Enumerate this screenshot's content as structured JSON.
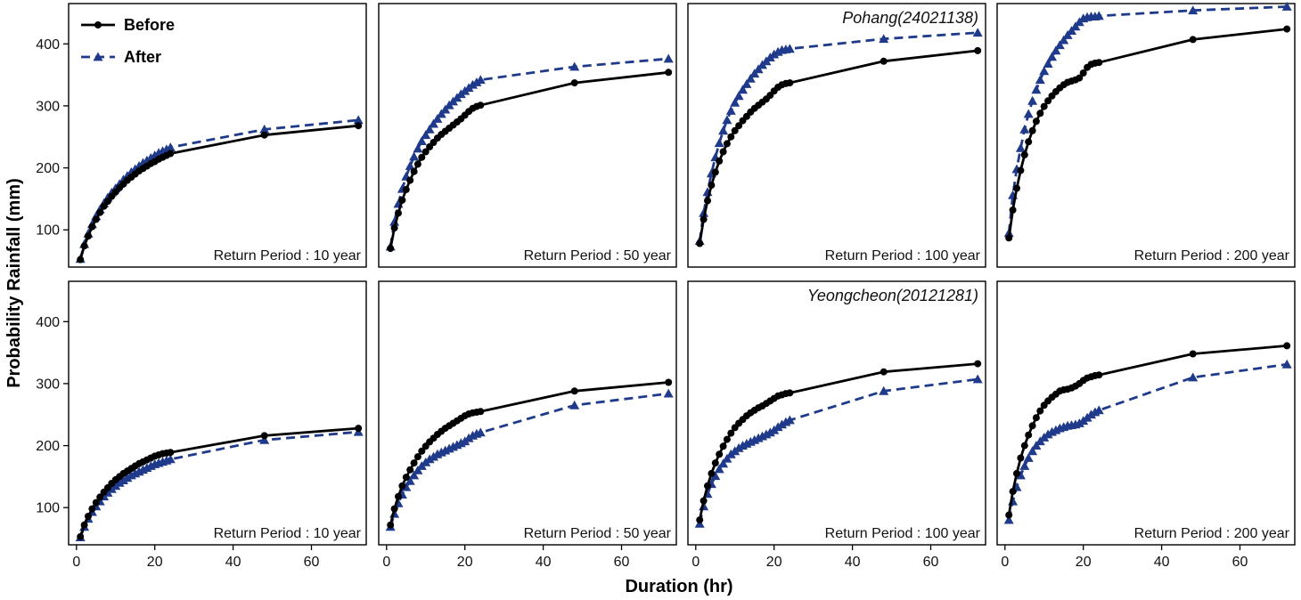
{
  "figure": {
    "ylabel": "Probability Rainfall (mm)",
    "xlabel": "Duration (hr)",
    "x_ticks": [
      0,
      20,
      40,
      60
    ],
    "y_ticks": [
      100,
      200,
      300,
      400
    ],
    "xlim": [
      -2,
      74
    ],
    "ylim": [
      40,
      465
    ],
    "legend": {
      "placement": "top-left",
      "entries": [
        {
          "name": "Before",
          "color": "#000000",
          "marker": "circle",
          "dash": "solid"
        },
        {
          "name": "After",
          "color": "#1f3a8a",
          "marker": "triangle",
          "dash": "dashed"
        }
      ]
    }
  },
  "chart_data": [
    {
      "type": "line",
      "row": 0,
      "col": 0,
      "label": "Return Period : 10 year",
      "station": "",
      "x": [
        1,
        2,
        3,
        4,
        5,
        6,
        7,
        8,
        9,
        10,
        11,
        12,
        13,
        14,
        15,
        16,
        17,
        18,
        19,
        20,
        21,
        22,
        23,
        24,
        48,
        72
      ],
      "series": [
        {
          "name": "Before",
          "values": [
            52,
            74,
            90,
            105,
            117,
            128,
            138,
            146,
            154,
            161,
            168,
            174,
            180,
            185,
            190,
            195,
            199,
            203,
            207,
            210,
            214,
            217,
            220,
            223,
            253,
            268
          ]
        },
        {
          "name": "After",
          "values": [
            53,
            77,
            94,
            109,
            122,
            133,
            143,
            152,
            160,
            167,
            174,
            181,
            187,
            193,
            198,
            203,
            208,
            212,
            216,
            220,
            224,
            227,
            230,
            233,
            262,
            277
          ]
        }
      ]
    },
    {
      "type": "line",
      "row": 0,
      "col": 1,
      "label": "Return Period : 50 year",
      "station": "",
      "x": [
        1,
        2,
        3,
        4,
        5,
        6,
        7,
        8,
        9,
        10,
        11,
        12,
        13,
        14,
        15,
        16,
        17,
        18,
        19,
        20,
        21,
        22,
        23,
        24,
        48,
        72
      ],
      "series": [
        {
          "name": "Before",
          "values": [
            70,
            103,
            127,
            148,
            165,
            180,
            194,
            206,
            217,
            226,
            234,
            241,
            248,
            254,
            259,
            264,
            269,
            274,
            279,
            285,
            291,
            296,
            299,
            301,
            337,
            354
          ]
        },
        {
          "name": "After",
          "values": [
            73,
            113,
            142,
            166,
            186,
            203,
            218,
            231,
            243,
            253,
            262,
            271,
            279,
            287,
            294,
            301,
            307,
            313,
            319,
            324,
            329,
            334,
            338,
            342,
            363,
            376
          ]
        }
      ]
    },
    {
      "type": "line",
      "row": 0,
      "col": 2,
      "label": "Return Period : 100 year",
      "station": "Pohang(24021138)",
      "x": [
        1,
        2,
        3,
        4,
        5,
        6,
        7,
        8,
        9,
        10,
        11,
        12,
        13,
        14,
        15,
        16,
        17,
        18,
        19,
        20,
        21,
        22,
        23,
        24,
        48,
        72
      ],
      "series": [
        {
          "name": "Before",
          "values": [
            78,
            117,
            147,
            172,
            193,
            211,
            226,
            239,
            250,
            260,
            268,
            276,
            283,
            290,
            296,
            301,
            306,
            311,
            317,
            324,
            330,
            334,
            336,
            337,
            372,
            389
          ]
        },
        {
          "name": "After",
          "values": [
            82,
            127,
            161,
            191,
            217,
            240,
            260,
            277,
            292,
            305,
            316,
            326,
            335,
            344,
            352,
            359,
            366,
            372,
            378,
            383,
            387,
            390,
            391,
            392,
            408,
            418
          ]
        }
      ]
    },
    {
      "type": "line",
      "row": 0,
      "col": 3,
      "label": "Return Period : 200 year",
      "station": "",
      "x": [
        1,
        2,
        3,
        4,
        5,
        6,
        7,
        8,
        9,
        10,
        11,
        12,
        13,
        14,
        15,
        16,
        17,
        18,
        19,
        20,
        21,
        22,
        23,
        24,
        48,
        72
      ],
      "series": [
        {
          "name": "Before",
          "values": [
            87,
            132,
            167,
            196,
            221,
            242,
            260,
            275,
            288,
            299,
            308,
            316,
            323,
            329,
            334,
            338,
            340,
            342,
            345,
            353,
            362,
            367,
            369,
            370,
            407,
            424
          ]
        },
        {
          "name": "After",
          "values": [
            95,
            156,
            198,
            232,
            262,
            287,
            308,
            326,
            342,
            356,
            368,
            379,
            389,
            398,
            406,
            414,
            421,
            428,
            435,
            441,
            443,
            444,
            444,
            445,
            454,
            460
          ]
        }
      ]
    },
    {
      "type": "line",
      "row": 1,
      "col": 0,
      "label": "Return Period : 10 year",
      "station": "",
      "x": [
        1,
        2,
        3,
        4,
        5,
        6,
        7,
        8,
        9,
        10,
        11,
        12,
        13,
        14,
        15,
        16,
        17,
        18,
        19,
        20,
        21,
        22,
        23,
        24,
        48,
        72
      ],
      "series": [
        {
          "name": "Before",
          "values": [
            53,
            72,
            86,
            98,
            108,
            117,
            125,
            132,
            139,
            145,
            150,
            155,
            159,
            163,
            167,
            171,
            174,
            177,
            180,
            183,
            185,
            187,
            188,
            189,
            216,
            228
          ]
        },
        {
          "name": "After",
          "values": [
            52,
            69,
            82,
            93,
            102,
            110,
            118,
            124,
            130,
            135,
            140,
            144,
            148,
            152,
            155,
            158,
            161,
            164,
            167,
            170,
            172,
            174,
            176,
            178,
            209,
            222
          ]
        }
      ]
    },
    {
      "type": "line",
      "row": 1,
      "col": 1,
      "label": "Return Period : 50 year",
      "station": "",
      "x": [
        1,
        2,
        3,
        4,
        5,
        6,
        7,
        8,
        9,
        10,
        11,
        12,
        13,
        14,
        15,
        16,
        17,
        18,
        19,
        20,
        21,
        22,
        23,
        24,
        48,
        72
      ],
      "series": [
        {
          "name": "Before",
          "values": [
            72,
            98,
            118,
            135,
            149,
            161,
            172,
            182,
            191,
            199,
            206,
            212,
            218,
            223,
            228,
            232,
            236,
            240,
            244,
            248,
            251,
            253,
            254,
            255,
            288,
            302
          ]
        },
        {
          "name": "After",
          "values": [
            69,
            90,
            107,
            121,
            133,
            143,
            152,
            160,
            167,
            173,
            178,
            182,
            186,
            189,
            192,
            195,
            198,
            201,
            204,
            207,
            212,
            216,
            219,
            221,
            265,
            284
          ]
        }
      ]
    },
    {
      "type": "line",
      "row": 1,
      "col": 2,
      "label": "Return Period : 100 year",
      "station": "Yeongcheon(20121281)",
      "x": [
        1,
        2,
        3,
        4,
        5,
        6,
        7,
        8,
        9,
        10,
        11,
        12,
        13,
        14,
        15,
        16,
        17,
        18,
        19,
        20,
        21,
        22,
        23,
        24,
        48,
        72
      ],
      "series": [
        {
          "name": "Before",
          "values": [
            80,
            111,
            135,
            155,
            172,
            186,
            199,
            210,
            220,
            229,
            236,
            242,
            248,
            253,
            257,
            261,
            264,
            268,
            272,
            276,
            280,
            282,
            284,
            285,
            319,
            332
          ]
        },
        {
          "name": "After",
          "values": [
            74,
            102,
            122,
            138,
            151,
            162,
            171,
            179,
            186,
            191,
            196,
            200,
            203,
            206,
            209,
            212,
            215,
            218,
            221,
            225,
            230,
            234,
            238,
            241,
            288,
            307
          ]
        }
      ]
    },
    {
      "type": "line",
      "row": 1,
      "col": 3,
      "label": "Return Period : 200 year",
      "station": "",
      "x": [
        1,
        2,
        3,
        4,
        5,
        6,
        7,
        8,
        9,
        10,
        11,
        12,
        13,
        14,
        15,
        16,
        17,
        18,
        19,
        20,
        21,
        22,
        23,
        24,
        48,
        72
      ],
      "series": [
        {
          "name": "Before",
          "values": [
            88,
            126,
            155,
            180,
            200,
            217,
            232,
            245,
            256,
            265,
            272,
            278,
            283,
            288,
            290,
            291,
            293,
            296,
            300,
            305,
            309,
            311,
            313,
            314,
            348,
            361
          ]
        },
        {
          "name": "After",
          "values": [
            80,
            110,
            133,
            152,
            167,
            180,
            191,
            200,
            207,
            213,
            218,
            222,
            225,
            228,
            230,
            232,
            233,
            234,
            236,
            240,
            245,
            250,
            254,
            257,
            310,
            331
          ]
        }
      ]
    }
  ]
}
